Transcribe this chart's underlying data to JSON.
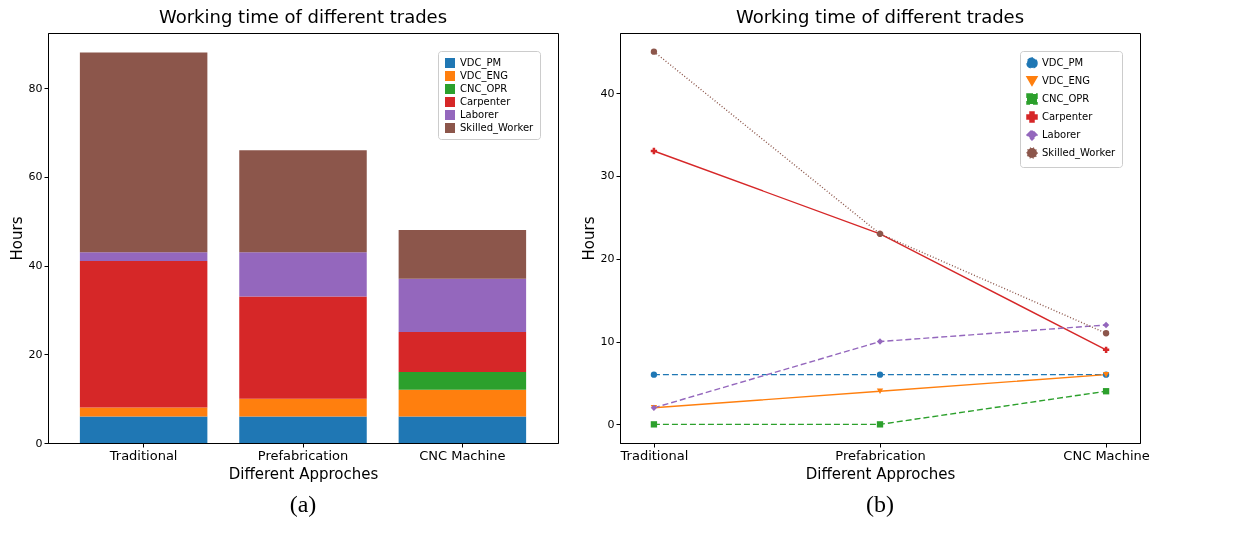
{
  "chart_data": [
    {
      "type": "bar",
      "title": "Working time of different trades",
      "xlabel": "Different Approches",
      "ylabel": "Hours",
      "stacked": true,
      "legend": "top right",
      "categories": [
        "Traditional",
        "Prefabrication",
        "CNC Machine"
      ],
      "ylim": [
        0,
        92.4
      ],
      "yticks": [
        0,
        20,
        40,
        60,
        80
      ],
      "annotations": [
        "(a)"
      ],
      "series": [
        {
          "name": "VDC_PM",
          "color": "#1f77b4",
          "values": [
            6,
            6,
            6
          ]
        },
        {
          "name": "VDC_ENG",
          "color": "#ff7f0e",
          "values": [
            2,
            4,
            6
          ]
        },
        {
          "name": "CNC_OPR",
          "color": "#2ca02c",
          "values": [
            0,
            0,
            4
          ]
        },
        {
          "name": "Carpenter",
          "color": "#d62728",
          "values": [
            33,
            23,
            9
          ]
        },
        {
          "name": "Laborer",
          "color": "#9467bd",
          "values": [
            2,
            10,
            12
          ]
        },
        {
          "name": "Skilled_Worker",
          "color": "#8c564b",
          "values": [
            45,
            23,
            11
          ]
        }
      ]
    },
    {
      "type": "line",
      "title": "Working time of different trades",
      "xlabel": "Different Approches",
      "ylabel": "Hours",
      "legend": "top right",
      "categories": [
        "Traditional",
        "Prefabrication",
        "CNC Machine"
      ],
      "ylim": [
        -2.25,
        47.25
      ],
      "yticks": [
        0,
        10,
        20,
        30,
        40
      ],
      "annotations": [
        "(b)"
      ],
      "series": [
        {
          "name": "VDC_PM",
          "color": "#1f77b4",
          "marker": "circle",
          "line_style": "dashed",
          "values": [
            6,
            6,
            6
          ]
        },
        {
          "name": "VDC_ENG",
          "color": "#ff7f0e",
          "marker": "triangle",
          "line_style": "solid",
          "values": [
            2,
            4,
            6
          ]
        },
        {
          "name": "CNC_OPR",
          "color": "#2ca02c",
          "marker": "square",
          "line_style": "dashed",
          "values": [
            0,
            0,
            4
          ]
        },
        {
          "name": "Carpenter",
          "color": "#d62728",
          "marker": "cross",
          "line_style": "solid",
          "values": [
            33,
            23,
            9
          ]
        },
        {
          "name": "Laborer",
          "color": "#9467bd",
          "marker": "diamond",
          "line_style": "dashed",
          "values": [
            2,
            10,
            12
          ]
        },
        {
          "name": "Skilled_Worker",
          "color": "#8c564b",
          "marker": "circle",
          "line_style": "dotted",
          "values": [
            45,
            23,
            11
          ]
        }
      ]
    }
  ]
}
